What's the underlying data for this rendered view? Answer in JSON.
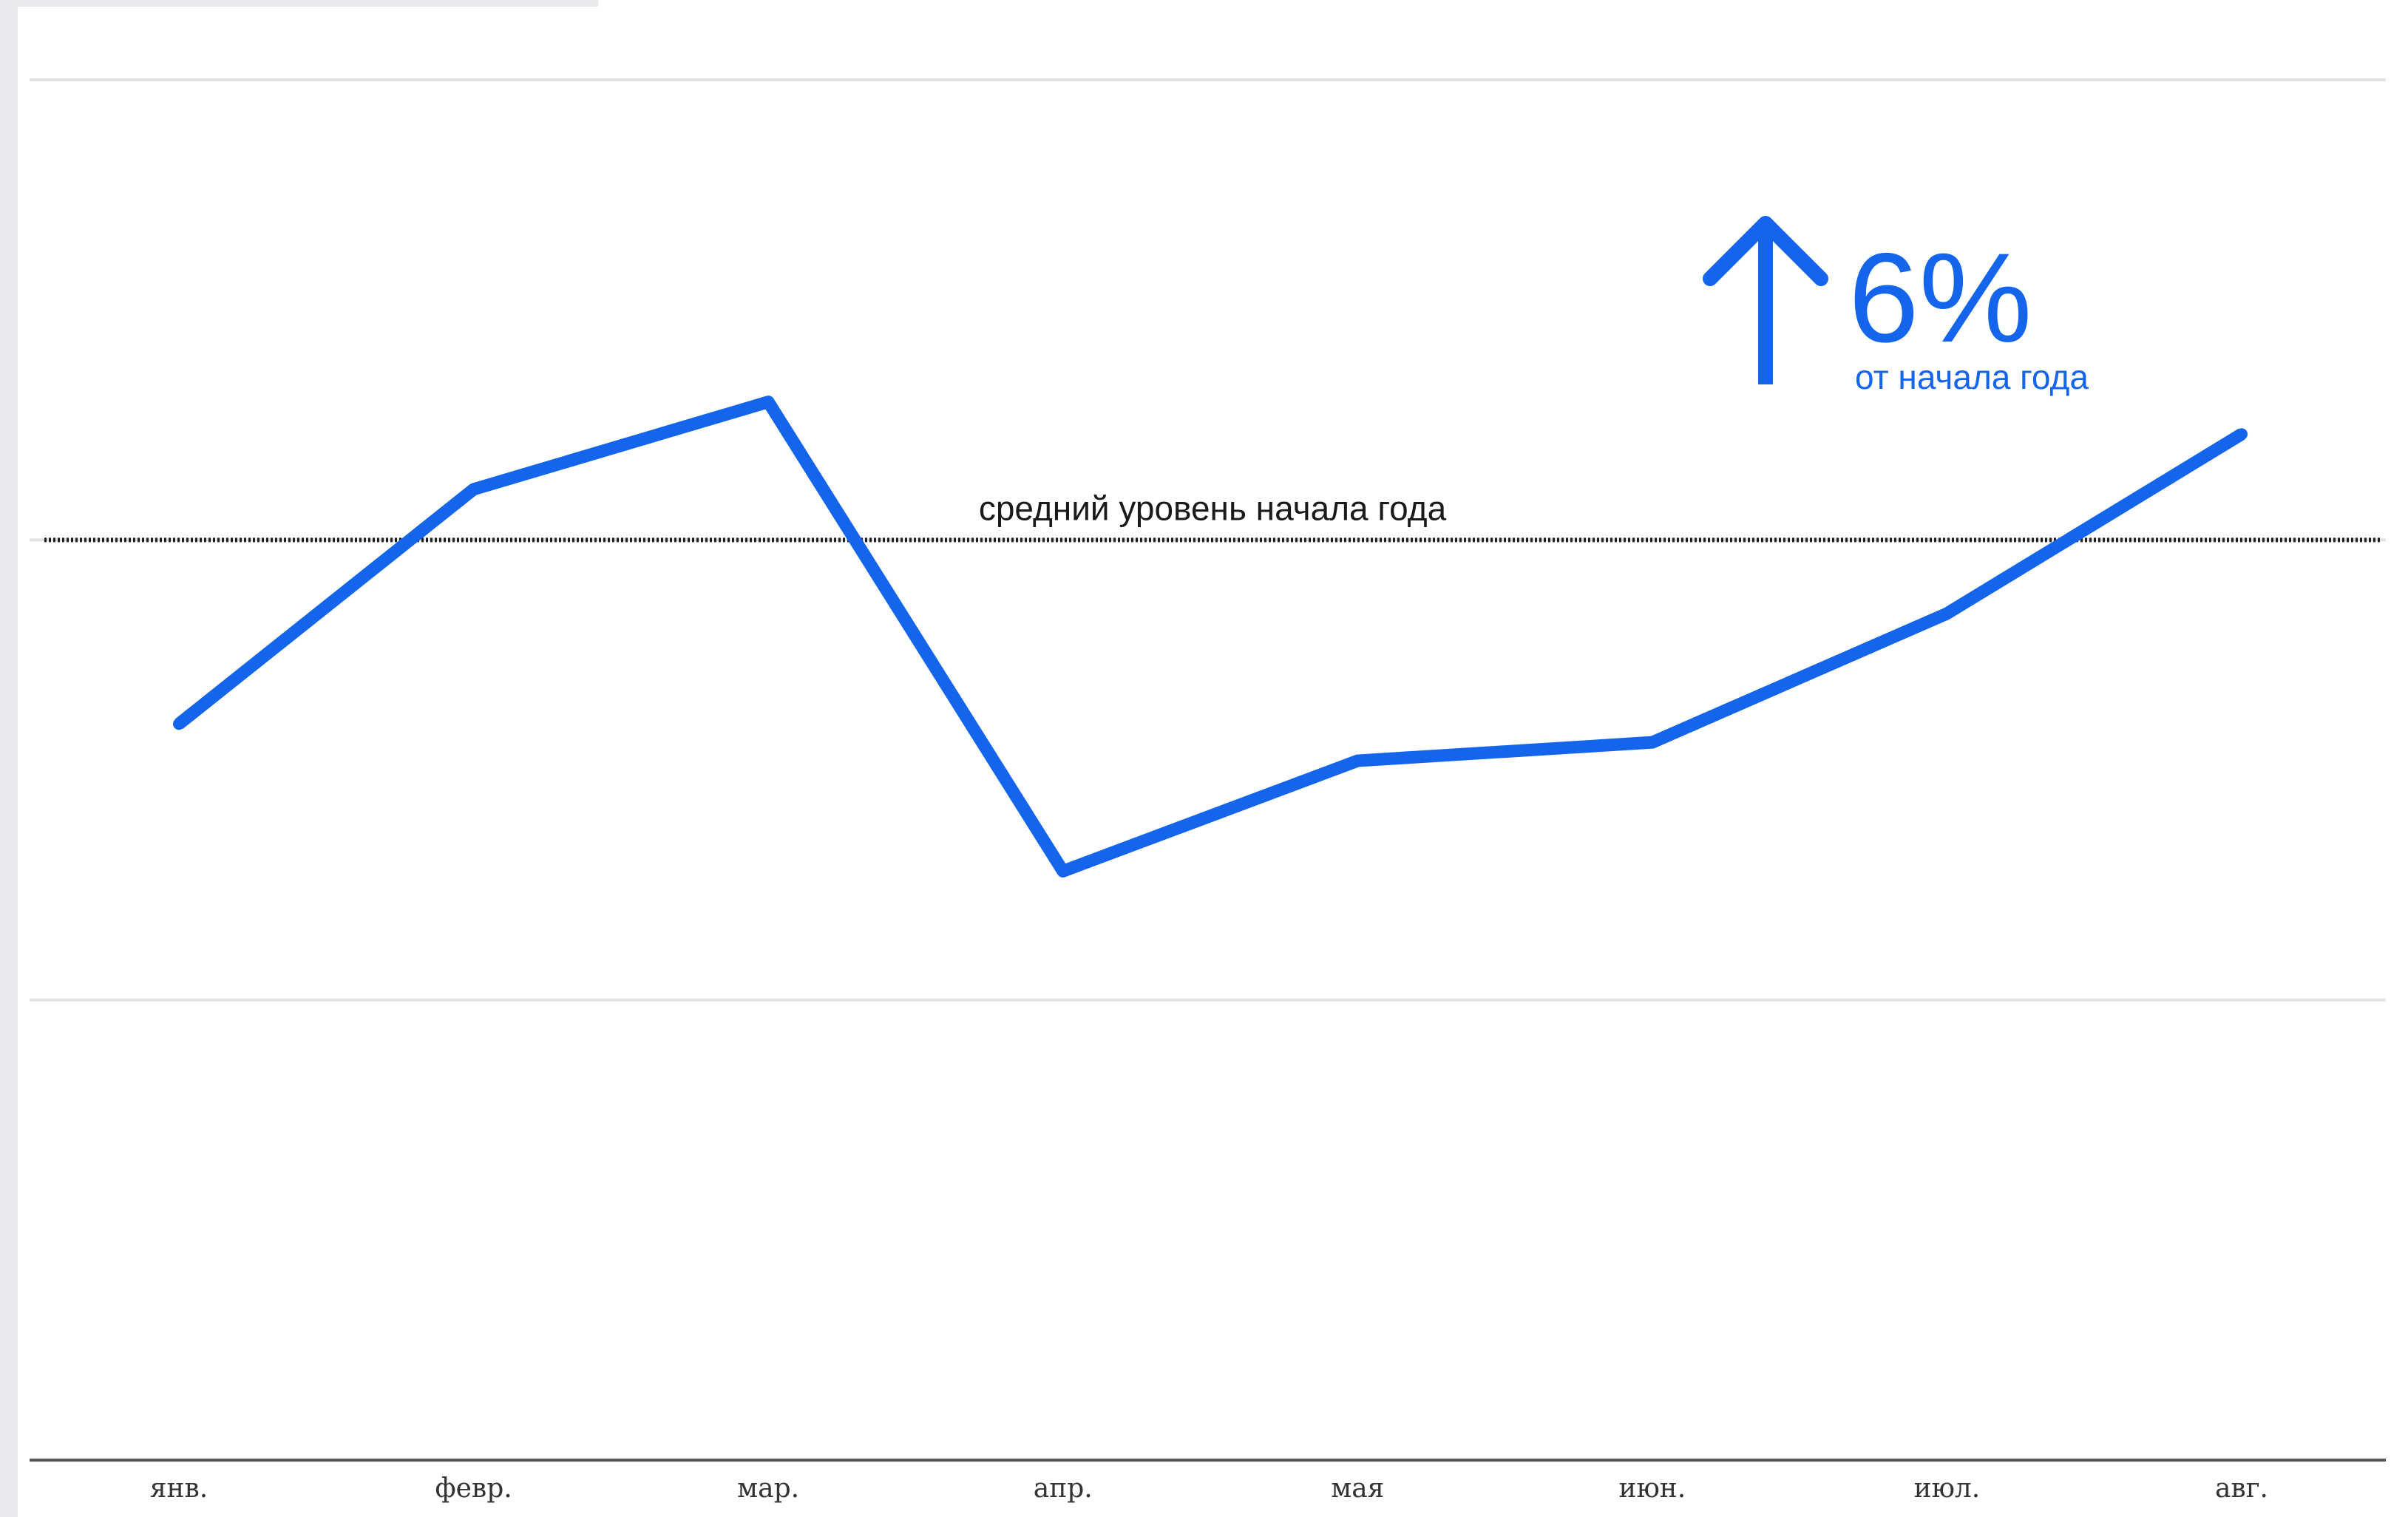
{
  "colors": {
    "line": "#1465ec",
    "reference": "#222222",
    "grid": "#e2e2e2",
    "axis": "#555555",
    "annotation": "#1465ec"
  },
  "annotation": {
    "value": "6%",
    "caption": "от начала года",
    "icon": "arrow-up-icon"
  },
  "chart_data": {
    "type": "line",
    "title": "",
    "xlabel": "",
    "ylabel": "",
    "categories": [
      "янв.",
      "февр.",
      "мар.",
      "апр.",
      "мая",
      "июн.",
      "июл.",
      "авг."
    ],
    "series": [
      {
        "values": [
          96,
          101.1,
          103,
          92.8,
          95.2,
          95.6,
          98.4,
          102.3
        ]
      }
    ],
    "reference_line": {
      "value": 100,
      "label": "средний уровень начала года",
      "style": "dotted"
    },
    "ylim": [
      80,
      110
    ],
    "grid": true,
    "y_tick_labels_visible": false
  }
}
